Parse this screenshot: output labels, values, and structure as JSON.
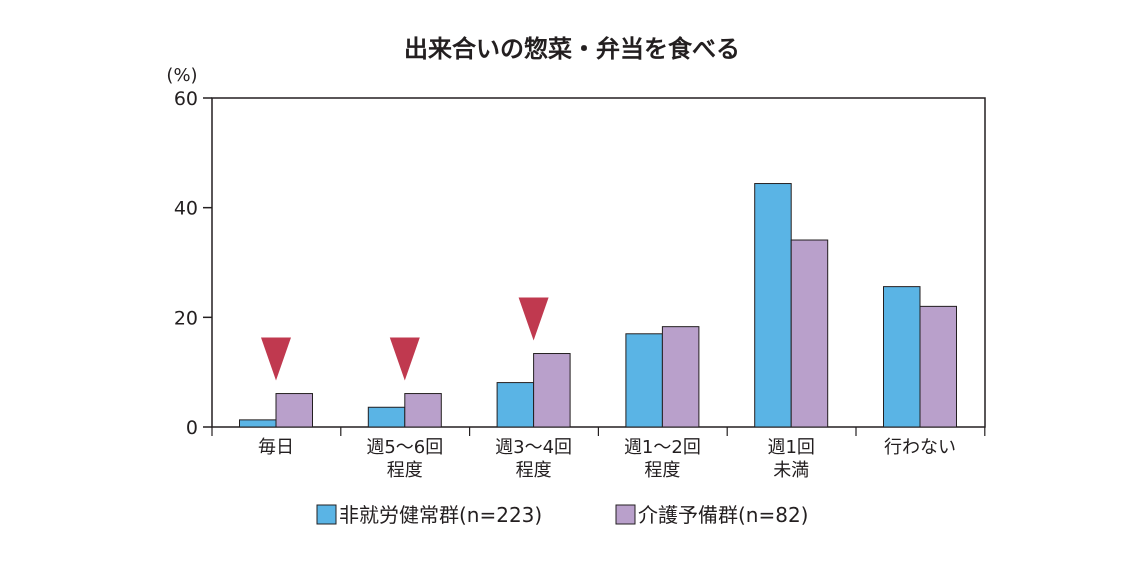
{
  "chart_data": {
    "type": "bar",
    "title": "出来合いの惣菜・弁当を食べる",
    "ylabel": "(%)",
    "ylim": [
      0,
      60
    ],
    "yticks": [
      0,
      20,
      40,
      60
    ],
    "grid": false,
    "legend_position": "bottom",
    "categories": [
      [
        "毎日"
      ],
      [
        "週5〜6回",
        "程度"
      ],
      [
        "週3〜4回",
        "程度"
      ],
      [
        "週1〜2回",
        "程度"
      ],
      [
        "週1回",
        "未満"
      ],
      [
        "行わない"
      ]
    ],
    "series": [
      {
        "name": "非就労健常群(n=223)",
        "color": "#5ab4e5",
        "values": [
          1.3,
          3.6,
          8.1,
          17.0,
          44.4,
          25.6
        ]
      },
      {
        "name": "介護予備群(n=82)",
        "color": "#b9a0cb",
        "values": [
          6.1,
          6.1,
          13.4,
          18.3,
          34.1,
          22.0
        ]
      }
    ],
    "markers": {
      "shape": "down-triangle",
      "color": "#c0394f",
      "category_indices": [
        0,
        1,
        2
      ]
    }
  }
}
